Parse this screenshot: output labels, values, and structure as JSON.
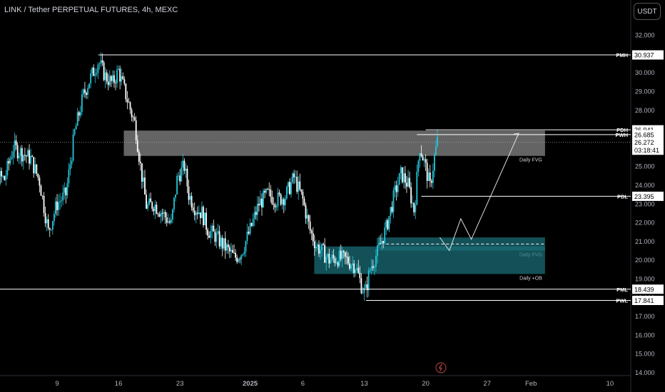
{
  "header": {
    "title": "LINK / Tether PERPETUAL FUTURES, 4h, MEXC"
  },
  "currency_button": {
    "label": "USDT"
  },
  "colors": {
    "background": "#000000",
    "candle_up": "#26c6da",
    "candle_down": "#ffffff",
    "axis_text": "#b2b5be",
    "gray_zone": "#8a8a8a",
    "teal_zone": "#1b6f78"
  },
  "chart_data": {
    "type": "candlestick",
    "y_axis": {
      "range": [
        14.0,
        32.8
      ],
      "ticks": [
        "32.000",
        "31.000",
        "30.000",
        "29.000",
        "28.000",
        "27.000",
        "26.000",
        "25.000",
        "24.000",
        "23.000",
        "22.000",
        "21.000",
        "20.000",
        "19.000",
        "18.000",
        "17.000",
        "16.000",
        "15.000",
        "14.000"
      ]
    },
    "x_axis": {
      "ticks": [
        {
          "label": "9",
          "day": 9
        },
        {
          "label": "16",
          "day": 16
        },
        {
          "label": "23",
          "day": 23
        },
        {
          "label": "2025",
          "day": 31
        },
        {
          "label": "6",
          "day": 37
        },
        {
          "label": "13",
          "day": 44
        },
        {
          "label": "20",
          "day": 51
        },
        {
          "label": "27",
          "day": 58
        },
        {
          "label": "Feb",
          "day": 63
        },
        {
          "label": "10",
          "day": 72
        }
      ]
    },
    "levels": [
      {
        "label": "PMH",
        "price": 30.937,
        "from_day": 13.7
      },
      {
        "label": "PDH",
        "price": 26.941,
        "from_day": 51.0
      },
      {
        "label": "PWH",
        "price": 26.685,
        "from_day": 50.0
      },
      {
        "label": "PDL",
        "price": 23.395,
        "from_day": 50.5
      },
      {
        "label": "PML",
        "price": 18.439,
        "from_day": 0
      },
      {
        "label": "PWL",
        "price": 17.841,
        "from_day": 44.2
      }
    ],
    "current_price": {
      "value": "26.272",
      "price": 26.272,
      "countdown": "03:18:41"
    },
    "zones": [
      {
        "label": "Daily FVG",
        "from_day": 16.6,
        "to_day": 64.6,
        "high": 26.9,
        "low": 25.55,
        "kind": "gray"
      },
      {
        "label": "Daily FVG",
        "from_day": 45.6,
        "to_day": 64.6,
        "high": 21.2,
        "low": 20.5,
        "kind": "teal"
      },
      {
        "label": "Daily +OB",
        "from_day": 38.3,
        "to_day": 64.6,
        "high": 20.72,
        "low": 19.25,
        "kind": "teal"
      }
    ],
    "midline": {
      "price": 20.85,
      "from_day": 46.5,
      "to_day": 64.6
    },
    "projection": [
      [
        52.6,
        21.2
      ],
      [
        53.7,
        20.5
      ],
      [
        55.0,
        22.2
      ],
      [
        56.2,
        21.1
      ],
      [
        61.6,
        26.75
      ]
    ],
    "path": [
      [
        0,
        25.0
      ],
      [
        1,
        25.6
      ],
      [
        2,
        24.5
      ],
      [
        3,
        24.3
      ],
      [
        4,
        26.0
      ],
      [
        5,
        25.7
      ],
      [
        6,
        25.4
      ],
      [
        7,
        24.2
      ],
      [
        8,
        21.5
      ],
      [
        9,
        23.0
      ],
      [
        10,
        23.5
      ],
      [
        11,
        26.8
      ],
      [
        12,
        28.8
      ],
      [
        12.7,
        29.6
      ],
      [
        13.7,
        30.6
      ],
      [
        14.5,
        29.8
      ],
      [
        15.3,
        29.4
      ],
      [
        16,
        30.1
      ],
      [
        16.7,
        29.0
      ],
      [
        17.3,
        28.1
      ],
      [
        17.9,
        27.2
      ],
      [
        18.5,
        25.0
      ],
      [
        19.2,
        22.8
      ],
      [
        20.0,
        23.0
      ],
      [
        21.0,
        22.5
      ],
      [
        22.0,
        21.9
      ],
      [
        22.7,
        24.4
      ],
      [
        23.5,
        25.0
      ],
      [
        24.0,
        23.5
      ],
      [
        24.7,
        22.8
      ],
      [
        25.5,
        22.5
      ],
      [
        26.2,
        21.6
      ],
      [
        27.0,
        21.3
      ],
      [
        27.7,
        20.9
      ],
      [
        28.5,
        20.5
      ],
      [
        29.2,
        20.1
      ],
      [
        30.0,
        20.4
      ],
      [
        31.0,
        21.6
      ],
      [
        32.0,
        23.0
      ],
      [
        33.0,
        23.5
      ],
      [
        34.0,
        23.2
      ],
      [
        35.0,
        23.4
      ],
      [
        36.0,
        24.4
      ],
      [
        37.0,
        23.2
      ],
      [
        37.8,
        21.6
      ],
      [
        38.5,
        20.8
      ],
      [
        39.3,
        20.4
      ],
      [
        40.0,
        20.0
      ],
      [
        41.0,
        20.1
      ],
      [
        42.0,
        20.0
      ],
      [
        43.0,
        19.7
      ],
      [
        43.7,
        18.6
      ],
      [
        44.1,
        18.2
      ],
      [
        44.7,
        19.6
      ],
      [
        45.5,
        20.4
      ],
      [
        46.5,
        21.7
      ],
      [
        47.5,
        23.6
      ],
      [
        48.2,
        24.6
      ],
      [
        49.0,
        24.0
      ],
      [
        49.7,
        22.6
      ],
      [
        50.3,
        26.1
      ],
      [
        50.9,
        25.1
      ],
      [
        51.5,
        23.9
      ],
      [
        52.0,
        25.5
      ],
      [
        52.4,
        26.5
      ]
    ]
  }
}
